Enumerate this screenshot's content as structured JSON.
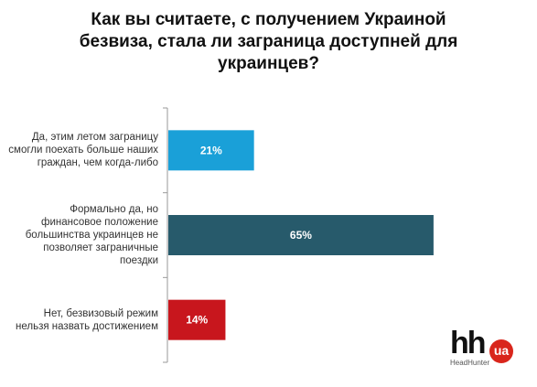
{
  "chart_data": {
    "type": "bar",
    "orientation": "horizontal",
    "title": "Как вы считаете, с получением Украиной безвиза, стала ли заграница доступней для украинцев?",
    "title_lines": [
      "Как вы считаете, с получением Украиной",
      "безвиза, стала ли заграница доступней для",
      "украинцев?"
    ],
    "categories": [
      "Да, этим летом заграницу смогли поехать больше наших граждан, чем когда-либо",
      "Формально да, но финансовое положение большинства украинцев не позволяет заграничные поездки",
      "Нет, безвизовый режим нельзя назвать достижением"
    ],
    "category_lines": [
      [
        "Да, этим летом заграницу",
        "смогли поехать больше наших",
        "граждан, чем когда-либо"
      ],
      [
        "Формально да, но",
        "финансовое положение",
        "большинства украинцев не",
        "позволяет заграничные",
        "поездки"
      ],
      [
        "Нет, безвизовый режим",
        "нельзя назвать достижением"
      ]
    ],
    "values": [
      21,
      65,
      14
    ],
    "value_labels": [
      "21%",
      "65%",
      "14%"
    ],
    "unit": "%",
    "colors": [
      "#1aa0d8",
      "#275a6b",
      "#c8161d"
    ],
    "xlim": [
      0,
      100
    ],
    "grid": false,
    "legend": "none"
  },
  "logo": {
    "text": "hh",
    "badge": "ua",
    "subtitle": "HeadHunter"
  }
}
